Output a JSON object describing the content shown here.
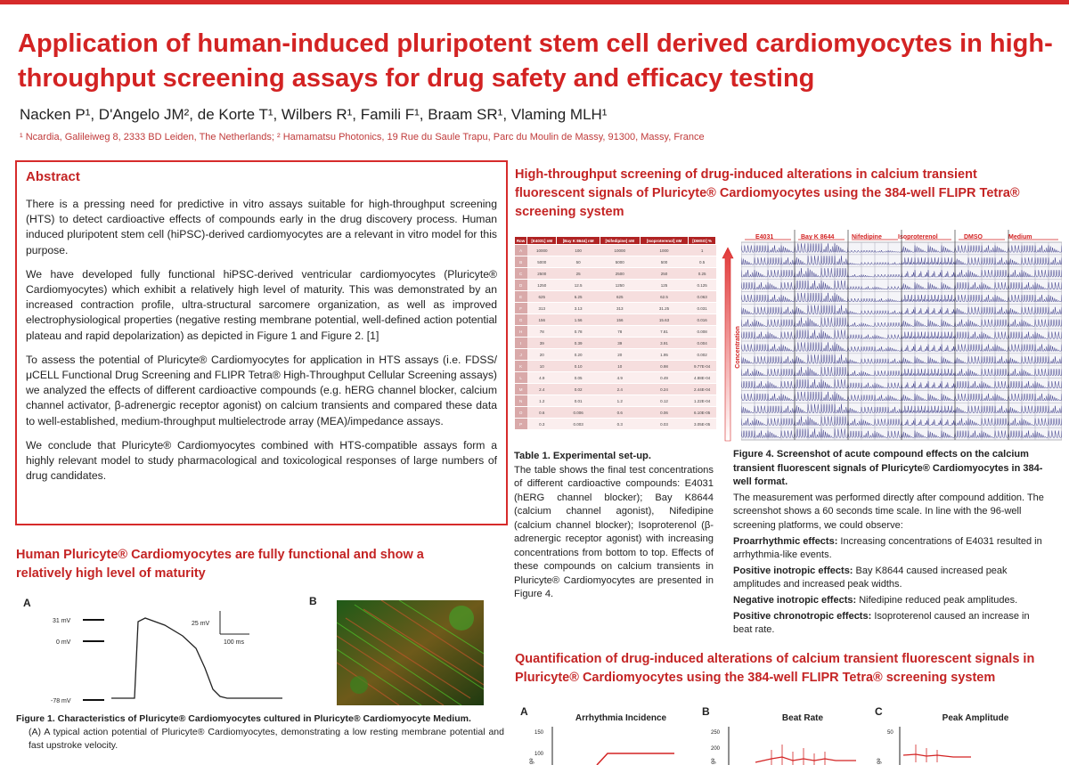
{
  "title": "Application of human-induced pluripotent stem cell derived cardiomyocytes in high-throughput screening assays for drug safety and efficacy testing",
  "authors": "Nacken P¹, D'Angelo JM², de Korte T¹, Wilbers R¹, Famili F¹, Braam SR¹, Vlaming MLH¹",
  "affiliations": "¹ Ncardia, Galileiweg 8, 2333 BD Leiden, The Netherlands; ² Hamamatsu Photonics, 19 Rue du Saule Trapu, Parc du Moulin de Massy, 91300, Massy, France",
  "abstract": {
    "heading": "Abstract",
    "p1": "There is a pressing need for predictive in vitro assays suitable for high-throughput screening (HTS) to detect cardioactive effects of compounds early in the drug discovery process. Human induced pluripotent stem cell (hiPSC)-derived cardiomyocytes are a relevant in vitro model for this purpose.",
    "p2": "We have developed fully functional hiPSC-derived ventricular cardiomyocytes (Pluricyte® Cardiomyocytes) which exhibit a relatively high level of maturity. This was demonstrated by an increased contraction profile, ultra-structural sarcomere organization, as well as improved electrophysiological properties (negative resting membrane potential, well-defined action potential plateau and rapid depolarization) as depicted in Figure 1 and Figure 2. [1]",
    "p3": "To assess the potential of Pluricyte® Cardiomyocytes for application in HTS assays (i.e. FDSS/μCELL Functional Drug Screening and FLIPR Tetra® High-Throughput Cellular Screening assays) we analyzed the effects of different cardioactive compounds (e.g. hERG channel blocker, calcium channel activator, β-adrenergic receptor agonist) on calcium transients and compared these data to well-established, medium-throughput multielectrode array (MEA)/impedance assays.",
    "p4": "We conclude that Pluricyte® Cardiomyocytes combined with HTS-compatible assays form a highly relevant model to study pharmacological and toxicological responses of large numbers of drug candidates."
  },
  "section_left": "Human Pluricyte® Cardiomyocytes are fully functional and show a relatively high level of maturity",
  "fig1": {
    "label_a": "A",
    "label_b": "B",
    "v31": "31 mV",
    "v0": "0 mV",
    "vneg78": "-78 mV",
    "scale_v": "25 mV",
    "scale_t": "100 ms",
    "caption_bold": "Figure 1. Characteristics of Pluricyte® Cardiomyocytes cultured in Pluricyte® Cardiomyocyte Medium.",
    "caption_a": "(A) A typical action potential of Pluricyte® Cardiomyocytes, demonstrating a low resting membrane potential and fast upstroke velocity."
  },
  "section_right1": "High-throughput screening of drug-induced alterations in calcium transient fluorescent signals of Pluricyte® Cardiomyocytes using the 384-well FLIPR Tetra® screening system",
  "table1": {
    "headers": [
      "Row",
      "[E4031] nM",
      "[Bay K 8644] nM",
      "[Nifedipine] nM",
      "[Isoproterenol] nM",
      "[DMSO] %"
    ],
    "rows": [
      [
        "A",
        "10000",
        "100",
        "10000",
        "1000",
        "1"
      ],
      [
        "B",
        "5000",
        "50",
        "5000",
        "500",
        "0.5"
      ],
      [
        "C",
        "2500",
        "25",
        "2500",
        "250",
        "0.25"
      ],
      [
        "D",
        "1250",
        "12.5",
        "1250",
        "125",
        "0.125"
      ],
      [
        "E",
        "625",
        "6.25",
        "625",
        "62.5",
        "0.063"
      ],
      [
        "F",
        "313",
        "3.13",
        "313",
        "31.25",
        "0.031"
      ],
      [
        "G",
        "156",
        "1.56",
        "156",
        "15.63",
        "0.016"
      ],
      [
        "H",
        "78",
        "0.78",
        "78",
        "7.81",
        "0.008"
      ],
      [
        "I",
        "39",
        "0.39",
        "39",
        "3.91",
        "0.004"
      ],
      [
        "J",
        "20",
        "0.20",
        "20",
        "1.95",
        "0.002"
      ],
      [
        "K",
        "10",
        "0.10",
        "10",
        "0.98",
        "9.77E-04"
      ],
      [
        "L",
        "4.9",
        "0.05",
        "4.9",
        "0.49",
        "4.88E-04"
      ],
      [
        "M",
        "2.4",
        "0.02",
        "2.4",
        "0.24",
        "2.44E-04"
      ],
      [
        "N",
        "1.2",
        "0.01",
        "1.2",
        "0.12",
        "1.22E-04"
      ],
      [
        "O",
        "0.6",
        "0.006",
        "0.6",
        "0.06",
        "6.10E-05"
      ],
      [
        "P",
        "0.3",
        "0.003",
        "0.3",
        "0.03",
        "3.05E-05"
      ]
    ],
    "caption_bold": "Table 1. Experimental set-up.",
    "caption": "The table shows the final test concentrations of different cardioactive compounds: E4031 (hERG channel blocker); Bay K8644 (calcium channel agonist), Nifedipine (calcium channel blocker); Isoproterenol (β-adrenergic receptor agonist) with increasing concentrations from bottom to top. Effects of these compounds on calcium transients in Pluricyte® Cardiomyocytes are presented in Figure 4."
  },
  "fig4": {
    "columns": [
      "E4031",
      "Bay K 8644",
      "Nifedipine",
      "Isoproterenol",
      "DMSO",
      "Medium"
    ],
    "axis_label": "Concentration",
    "caption_bold": "Figure 4. Screenshot of acute compound effects on the calcium transient fluorescent signals of Pluricyte® Cardiomyocytes in 384-well format.",
    "caption": "The measurement was performed directly after compound addition. The screenshot shows a 60 seconds time scale. In line with the 96-well screening platforms, we could observe:",
    "e1_label": "Proarrhythmic effects:",
    "e1_text": " Increasing concentrations of E4031 resulted in arrhythmia-like events.",
    "e2_label": "Positive inotropic effects:",
    "e2_text": " Bay K8644 caused increased peak amplitudes and increased peak widths.",
    "e3_label": "Negative inotropic effects:",
    "e3_text": " Nifedipine reduced peak amplitudes.",
    "e4_label": "Positive chronotropic effects:",
    "e4_text": " Isoproterenol caused an increase in beat rate."
  },
  "section_right2": "Quantification of drug-induced alterations of calcium transient fluorescent signals in Pluricyte® Cardiomyocytes using the 384-well FLIPR Tetra® screening system",
  "graphs": [
    {
      "letter": "A",
      "title": "Arrhythmia Incidence",
      "ticks": [
        "150",
        "100"
      ],
      "ylabel": "ge"
    },
    {
      "letter": "B",
      "title": "Beat Rate",
      "ticks": [
        "250",
        "200"
      ],
      "ylabel": "ge"
    },
    {
      "letter": "C",
      "title": "Peak Amplitude",
      "ticks": [
        "50"
      ],
      "ylabel": "ge"
    }
  ],
  "colors": {
    "accent": "#d32323",
    "table_header": "#b02323"
  }
}
